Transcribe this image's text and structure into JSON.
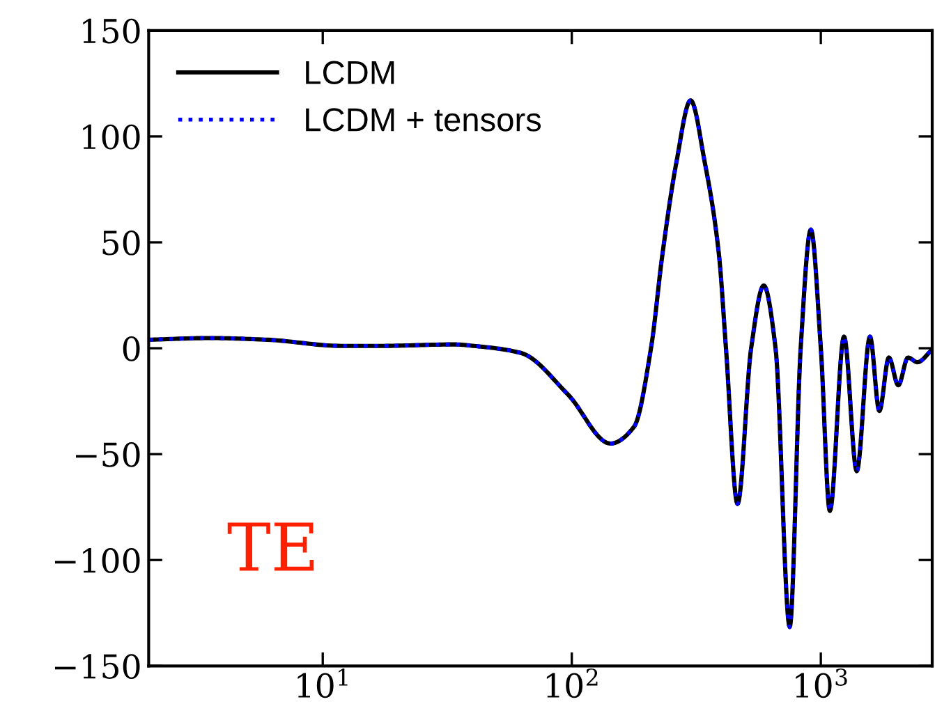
{
  "chart_data": {
    "type": "line",
    "log": "x",
    "xlim": [
      2,
      2800
    ],
    "ylim": [
      -150,
      150
    ],
    "xticks": [
      {
        "value": 10,
        "label": "10$^{1}$"
      },
      {
        "value": 100,
        "label": "10$^{2}$"
      },
      {
        "value": 1000,
        "label": "10$^{3}$"
      }
    ],
    "yticks": [
      {
        "value": -150,
        "label": "−150"
      },
      {
        "value": -100,
        "label": "−100"
      },
      {
        "value": -50,
        "label": "−50"
      },
      0,
      50,
      100,
      150
    ],
    "x": [
      2,
      3.5,
      6,
      11.9,
      16.9,
      33.8,
      40.4,
      62.4,
      96.6,
      143,
      178,
      208,
      231,
      263,
      300,
      342,
      390,
      416,
      463,
      525,
      590,
      658,
      750,
      830,
      912,
      1000,
      1087,
      1239,
      1394,
      1575,
      1718,
      1876,
      2047,
      2238,
      2443,
      2780
    ],
    "series": [
      {
        "name": "LCDM",
        "color": "#000000",
        "line_style": "solid",
        "values": [
          4,
          4.8,
          4,
          1.1,
          1.1,
          1.8,
          1.1,
          -2.2,
          -21.9,
          -45,
          -37,
          0,
          44,
          87.7,
          117,
          87.7,
          44,
          0,
          -73.5,
          0,
          29.6,
          0,
          -131.6,
          0,
          56,
          0,
          -76.8,
          5.5,
          -58,
          5.5,
          -29.6,
          -4.4,
          -17.5,
          -4.4,
          -6.6,
          -1
        ]
      },
      {
        "name": "LCDM + tensors",
        "color": "#0000ff",
        "line_style": "dotted",
        "values": [
          4,
          4.8,
          4,
          1.1,
          1.1,
          1.8,
          1.1,
          -2.2,
          -21.9,
          -45,
          -37,
          0,
          44,
          87.7,
          117,
          87.7,
          44,
          0,
          -73.5,
          0,
          29.6,
          0,
          -131.6,
          0,
          56,
          0,
          -76.8,
          5.5,
          -58,
          5.5,
          -29.6,
          -4.4,
          -17.5,
          -4.4,
          -6.6,
          -1
        ]
      }
    ],
    "legend": "top left",
    "grid": false,
    "annotations": [
      "TE"
    ]
  }
}
